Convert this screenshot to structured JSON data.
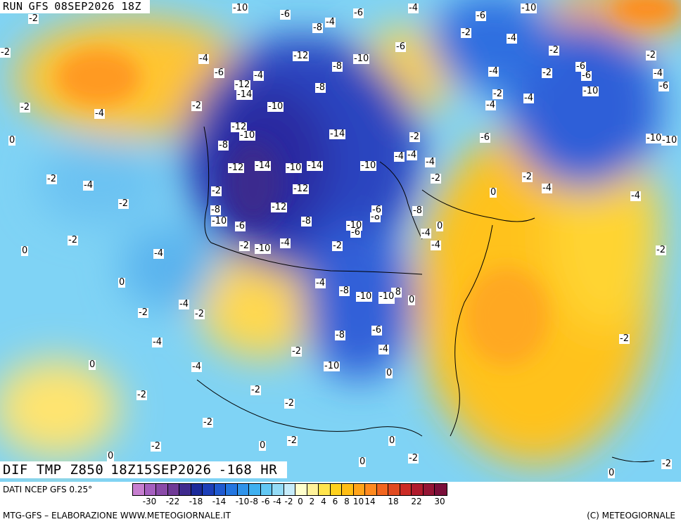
{
  "header": {
    "run_label": "RUN",
    "model": "GFS",
    "run_time": "08SEP2026 18Z"
  },
  "field_title": {
    "variable": "DIF TMP Z850",
    "valid_time": "18Z15SEP2026",
    "lead": "-168 HR"
  },
  "legend": {
    "source": "DATI NCEP GFS 0.25°",
    "colors": [
      "#c77fd0",
      "#a55fbf",
      "#8a4aa8",
      "#6f3a96",
      "#3f2a8e",
      "#1b2a9a",
      "#1c3fb8",
      "#1f5ad0",
      "#2376e0",
      "#2f93ea",
      "#3fb0f0",
      "#62c8f4",
      "#94dcf7",
      "#c6ecfa",
      "#ffffcc",
      "#fff29a",
      "#ffe44d",
      "#ffd21f",
      "#ffbe14",
      "#ffa41a",
      "#ff8a1f",
      "#f2661f",
      "#e04a20",
      "#cc2c26",
      "#b01b2d",
      "#951535",
      "#7a0f3a"
    ],
    "ticks": [
      "-30",
      "-22",
      "-18",
      "-14",
      "-10",
      "-8",
      "-6",
      "-4",
      "-2",
      "0",
      "2",
      "4",
      "6",
      "8",
      "10",
      "14",
      "18",
      "22",
      "30"
    ]
  },
  "footer": {
    "left": "MTG-GFS – ELABORAZIONE WWW.METEOGIORNALE.IT",
    "right": "(C) METEOGIORNALE"
  },
  "contour_labels": [
    "-2",
    "-6",
    "-2",
    "-8",
    "-4",
    "-6",
    "-4",
    "-2",
    "-6",
    "-10",
    "-12",
    "-2",
    "-4",
    "-10",
    "-6",
    "-4",
    "-2",
    "-4",
    "-6",
    "-6",
    "-4",
    "-8",
    "-2",
    "-2",
    "-4",
    "-6",
    "-4",
    "-12",
    "-8",
    "-4",
    "-2",
    "-4",
    "-10",
    "-14",
    "-6",
    "-2",
    "-10",
    "-2",
    "-12",
    "-10",
    "0",
    "-10",
    "-14",
    "-2",
    "-8",
    "-6",
    "-4",
    "-4",
    "-4",
    "-4",
    "-2",
    "-12",
    "-14",
    "-10",
    "-14",
    "-10",
    "-2",
    "-4",
    "-2",
    "-2",
    "-12",
    "-2",
    "-4",
    "-8",
    "-12",
    "-8",
    "-10",
    "-8",
    "-6",
    "-10",
    "-6",
    "-4",
    "0",
    "-6",
    "-2",
    "-2",
    "-10",
    "-4",
    "-4",
    "-2",
    "0",
    "-4",
    "-2",
    "0",
    "-8",
    "-10",
    "-10",
    "-4",
    "-8",
    "-4",
    "-2",
    "-2",
    "-8",
    "-6",
    "-4",
    "-2",
    "-4",
    "-2",
    "0",
    "0",
    "-10",
    "-4",
    "-2",
    "-2",
    "-2",
    "0",
    "-2",
    "0",
    "-2",
    "-2",
    "0",
    "0",
    "0",
    "-2",
    "0",
    "-2",
    "-8",
    "-10",
    "-10",
    "0",
    "-10"
  ]
}
